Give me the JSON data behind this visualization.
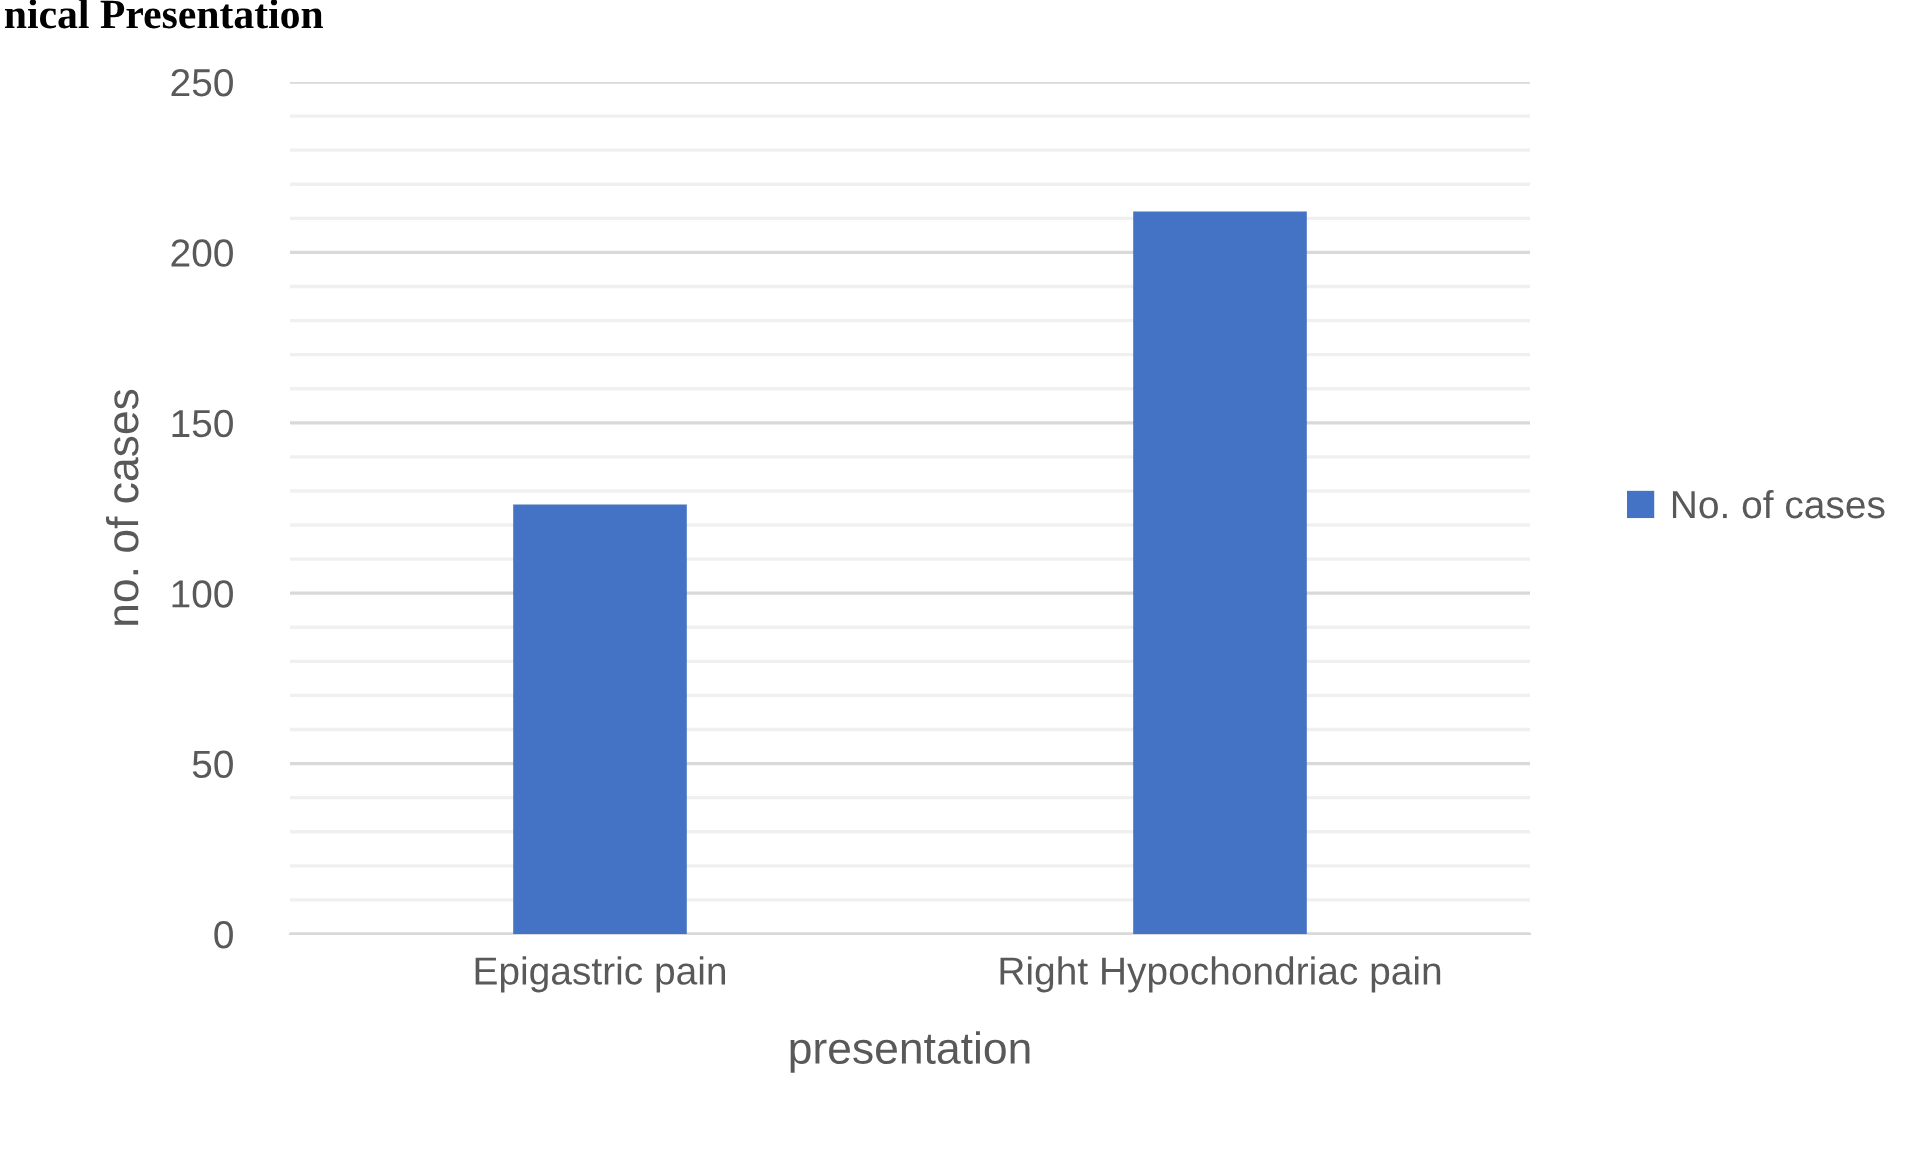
{
  "chart_data": {
    "type": "bar",
    "title": "nical Presentation",
    "xlabel": "presentation",
    "ylabel": "no. of cases",
    "categories": [
      "Epigastric pain",
      "Right Hypochondriac pain"
    ],
    "series": [
      {
        "name": "No. of cases",
        "color": "#4472c4",
        "values": [
          126,
          212
        ]
      }
    ],
    "ylim": [
      0,
      250
    ],
    "yticks": [
      0,
      {
        "value": 10,
        "label": null
      },
      {
        "value": 20,
        "label": null
      },
      {
        "value": 30,
        "label": null
      },
      {
        "value": 40,
        "label": null
      },
      50,
      {
        "value": 60,
        "label": null
      },
      {
        "value": 70,
        "label": null
      },
      {
        "value": 80,
        "label": null
      },
      {
        "value": 90,
        "label": null
      },
      100,
      {
        "value": 110,
        "label": null
      },
      {
        "value": 120,
        "label": null
      },
      {
        "value": 130,
        "label": null
      },
      {
        "value": 140,
        "label": null
      },
      150,
      {
        "value": 160,
        "label": null
      },
      {
        "value": 170,
        "label": null
      },
      {
        "value": 180,
        "label": null
      },
      {
        "value": 190,
        "label": null
      },
      200,
      {
        "value": 210,
        "label": null
      },
      {
        "value": 220,
        "label": null
      },
      {
        "value": 230,
        "label": null
      },
      {
        "value": 240,
        "label": null
      },
      250
    ],
    "grid": "y",
    "legend": "right"
  }
}
